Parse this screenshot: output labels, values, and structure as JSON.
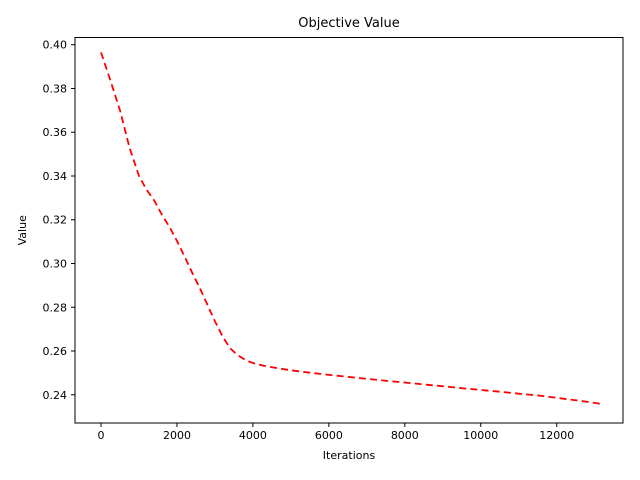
{
  "figure": {
    "background_color": "#ffffff",
    "text_color": "#000000",
    "frame_color": "#000000"
  },
  "chart_data": {
    "type": "line",
    "title": "Objective Value",
    "xlabel": "Iterations",
    "ylabel": "Value",
    "grid": false,
    "legend": null,
    "xlim": [
      -685,
      13745
    ],
    "ylim": [
      0.2271,
      0.4033
    ],
    "xticks": [
      0,
      2000,
      4000,
      6000,
      8000,
      10000,
      12000
    ],
    "xtick_labels": [
      "0",
      "2000",
      "4000",
      "6000",
      "8000",
      "10000",
      "12000"
    ],
    "yticks": [
      0.24,
      0.26,
      0.28,
      0.3,
      0.32,
      0.34,
      0.36,
      0.38,
      0.4
    ],
    "ytick_labels": [
      "0.24",
      "0.26",
      "0.28",
      "0.30",
      "0.32",
      "0.34",
      "0.36",
      "0.38",
      "0.40"
    ],
    "series": [
      {
        "name": "objective",
        "color": "#ff0000",
        "linestyle": "dashed",
        "x": [
          0,
          250,
          500,
          750,
          1000,
          1200,
          1400,
          1600,
          1800,
          2000,
          2200,
          2400,
          2600,
          2800,
          3000,
          3200,
          3400,
          3600,
          3800,
          4000,
          4300,
          4700,
          5000,
          5500,
          6000,
          6500,
          7000,
          7500,
          8000,
          8500,
          9000,
          9500,
          10000,
          10500,
          11000,
          11500,
          12000,
          12500,
          13000,
          13200
        ],
        "y": [
          0.3965,
          0.3835,
          0.37,
          0.353,
          0.34,
          0.3337,
          0.3288,
          0.3224,
          0.3168,
          0.3103,
          0.3032,
          0.2958,
          0.2888,
          0.2812,
          0.2736,
          0.2667,
          0.2612,
          0.2581,
          0.2559,
          0.2545,
          0.2532,
          0.252,
          0.2512,
          0.2501,
          0.2491,
          0.2482,
          0.2473,
          0.2464,
          0.2456,
          0.2447,
          0.2439,
          0.243,
          0.2422,
          0.2414,
          0.2405,
          0.2397,
          0.2386,
          0.2375,
          0.2363,
          0.2357
        ]
      }
    ]
  }
}
